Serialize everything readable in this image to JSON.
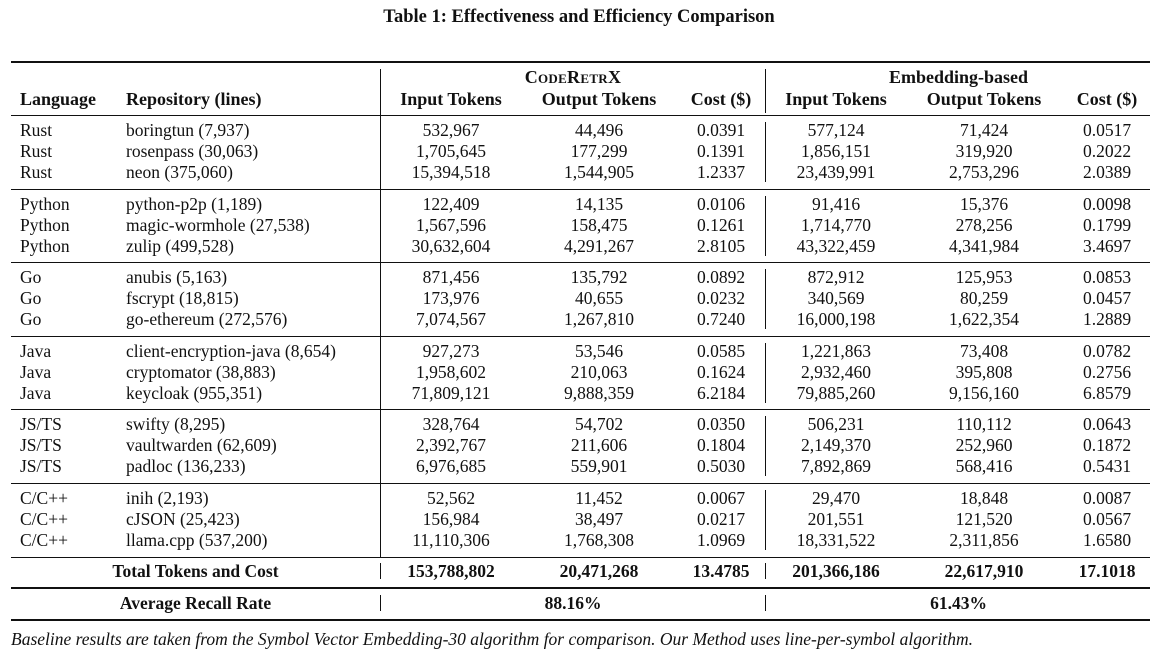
{
  "caption": "Table 1: Effectiveness and Efficiency Comparison",
  "group_headers": {
    "left": "CodeRetrX",
    "right": "Embedding-based"
  },
  "col_headers": {
    "language": "Language",
    "repository": "Repository (lines)",
    "input": "Input Tokens",
    "output": "Output Tokens",
    "cost": "Cost ($)"
  },
  "groups": [
    {
      "rows": [
        {
          "lang": "Rust",
          "repo": "boringtun (7,937)",
          "c_in": "532,967",
          "c_out": "44,496",
          "c_cost": "0.0391",
          "e_in": "577,124",
          "e_out": "71,424",
          "e_cost": "0.0517"
        },
        {
          "lang": "Rust",
          "repo": "rosenpass (30,063)",
          "c_in": "1,705,645",
          "c_out": "177,299",
          "c_cost": "0.1391",
          "e_in": "1,856,151",
          "e_out": "319,920",
          "e_cost": "0.2022"
        },
        {
          "lang": "Rust",
          "repo": "neon (375,060)",
          "c_in": "15,394,518",
          "c_out": "1,544,905",
          "c_cost": "1.2337",
          "e_in": "23,439,991",
          "e_out": "2,753,296",
          "e_cost": "2.0389"
        }
      ]
    },
    {
      "rows": [
        {
          "lang": "Python",
          "repo": "python-p2p (1,189)",
          "c_in": "122,409",
          "c_out": "14,135",
          "c_cost": "0.0106",
          "e_in": "91,416",
          "e_out": "15,376",
          "e_cost": "0.0098"
        },
        {
          "lang": "Python",
          "repo": "magic-wormhole (27,538)",
          "c_in": "1,567,596",
          "c_out": "158,475",
          "c_cost": "0.1261",
          "e_in": "1,714,770",
          "e_out": "278,256",
          "e_cost": "0.1799"
        },
        {
          "lang": "Python",
          "repo": "zulip (499,528)",
          "c_in": "30,632,604",
          "c_out": "4,291,267",
          "c_cost": "2.8105",
          "e_in": "43,322,459",
          "e_out": "4,341,984",
          "e_cost": "3.4697"
        }
      ]
    },
    {
      "rows": [
        {
          "lang": "Go",
          "repo": "anubis (5,163)",
          "c_in": "871,456",
          "c_out": "135,792",
          "c_cost": "0.0892",
          "e_in": "872,912",
          "e_out": "125,953",
          "e_cost": "0.0853"
        },
        {
          "lang": "Go",
          "repo": "fscrypt (18,815)",
          "c_in": "173,976",
          "c_out": "40,655",
          "c_cost": "0.0232",
          "e_in": "340,569",
          "e_out": "80,259",
          "e_cost": "0.0457"
        },
        {
          "lang": "Go",
          "repo": "go-ethereum (272,576)",
          "c_in": "7,074,567",
          "c_out": "1,267,810",
          "c_cost": "0.7240",
          "e_in": "16,000,198",
          "e_out": "1,622,354",
          "e_cost": "1.2889"
        }
      ]
    },
    {
      "rows": [
        {
          "lang": "Java",
          "repo": "client-encryption-java (8,654)",
          "c_in": "927,273",
          "c_out": "53,546",
          "c_cost": "0.0585",
          "e_in": "1,221,863",
          "e_out": "73,408",
          "e_cost": "0.0782"
        },
        {
          "lang": "Java",
          "repo": "cryptomator (38,883)",
          "c_in": "1,958,602",
          "c_out": "210,063",
          "c_cost": "0.1624",
          "e_in": "2,932,460",
          "e_out": "395,808",
          "e_cost": "0.2756"
        },
        {
          "lang": "Java",
          "repo": "keycloak (955,351)",
          "c_in": "71,809,121",
          "c_out": "9,888,359",
          "c_cost": "6.2184",
          "e_in": "79,885,260",
          "e_out": "9,156,160",
          "e_cost": "6.8579"
        }
      ]
    },
    {
      "rows": [
        {
          "lang": "JS/TS",
          "repo": "swifty (8,295)",
          "c_in": "328,764",
          "c_out": "54,702",
          "c_cost": "0.0350",
          "e_in": "506,231",
          "e_out": "110,112",
          "e_cost": "0.0643"
        },
        {
          "lang": "JS/TS",
          "repo": "vaultwarden (62,609)",
          "c_in": "2,392,767",
          "c_out": "211,606",
          "c_cost": "0.1804",
          "e_in": "2,149,370",
          "e_out": "252,960",
          "e_cost": "0.1872"
        },
        {
          "lang": "JS/TS",
          "repo": "padloc (136,233)",
          "c_in": "6,976,685",
          "c_out": "559,901",
          "c_cost": "0.5030",
          "e_in": "7,892,869",
          "e_out": "568,416",
          "e_cost": "0.5431"
        }
      ]
    },
    {
      "rows": [
        {
          "lang": "C/C++",
          "repo": "inih (2,193)",
          "c_in": "52,562",
          "c_out": "11,452",
          "c_cost": "0.0067",
          "e_in": "29,470",
          "e_out": "18,848",
          "e_cost": "0.0087"
        },
        {
          "lang": "C/C++",
          "repo": "cJSON (25,423)",
          "c_in": "156,984",
          "c_out": "38,497",
          "c_cost": "0.0217",
          "e_in": "201,551",
          "e_out": "121,520",
          "e_cost": "0.0567"
        },
        {
          "lang": "C/C++",
          "repo": "llama.cpp (537,200)",
          "c_in": "11,110,306",
          "c_out": "1,768,308",
          "c_cost": "1.0969",
          "e_in": "18,331,522",
          "e_out": "2,311,856",
          "e_cost": "1.6580"
        }
      ]
    }
  ],
  "total": {
    "label": "Total Tokens and Cost",
    "c_in": "153,788,802",
    "c_out": "20,471,268",
    "c_cost": "13.4785",
    "e_in": "201,366,186",
    "e_out": "22,617,910",
    "e_cost": "17.1018"
  },
  "recall": {
    "label": "Average Recall Rate",
    "c": "88.16%",
    "e": "61.43%"
  },
  "footnote": "Baseline results are taken from the Symbol Vector Embedding-30 algorithm for comparison. Our Method uses line-per-symbol algorithm."
}
